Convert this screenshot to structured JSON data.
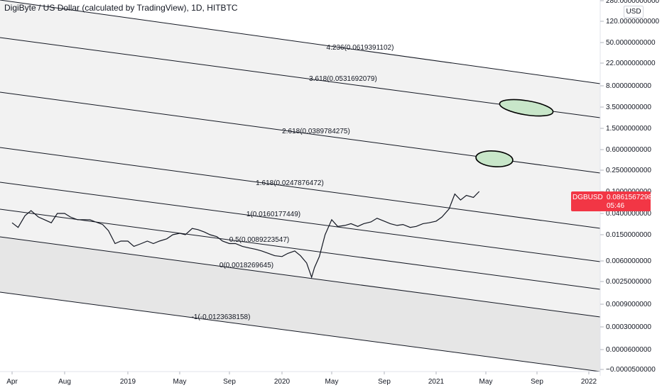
{
  "header": {
    "title": "DigiByte / US Dollar (calculated by TradingView), 1D, HITBTC",
    "currency": "USD"
  },
  "price_tag": {
    "symbol": "DGBUSD",
    "value": "0.0861567298",
    "countdown": "05:46",
    "color": "#f23645"
  },
  "chart_data": {
    "type": "line",
    "title": "DigiByte / US Dollar (calculated by TradingView), 1D, HITBTC",
    "y_scale": "log",
    "y_ticks": [
      "280.0000000000",
      "120.0000000000",
      "50.0000000000",
      "22.0000000000",
      "8.0000000000",
      "3.5000000000",
      "1.5000000000",
      "0.6000000000",
      "0.2500000000",
      "0.1000000000",
      "0.0400000000",
      "0.0150000000",
      "0.0060000000",
      "0.0025000000",
      "0.0009000000",
      "0.0003000000",
      "0.0000600000",
      "−0.0000500000"
    ],
    "x_ticks": [
      "Apr",
      "Aug",
      "2019",
      "May",
      "Sep",
      "2020",
      "May",
      "Sep",
      "2021",
      "May",
      "Sep",
      "2022"
    ],
    "series": [
      {
        "x": [
          "2018-04-01",
          "2018-04-15",
          "2018-05-01",
          "2018-05-15",
          "2018-06-01",
          "2018-06-15",
          "2018-07-01",
          "2018-07-15",
          "2018-08-01",
          "2018-08-15",
          "2018-09-01",
          "2018-09-15",
          "2018-10-01",
          "2018-10-15",
          "2018-11-01",
          "2018-11-15",
          "2018-12-01",
          "2018-12-15",
          "2019-01-01",
          "2019-01-15",
          "2019-02-01",
          "2019-02-15",
          "2019-03-01",
          "2019-03-15",
          "2019-04-01",
          "2019-04-15",
          "2019-05-01",
          "2019-05-15",
          "2019-06-01",
          "2019-06-15",
          "2019-07-01",
          "2019-07-15",
          "2019-08-01",
          "2019-08-15",
          "2019-09-01",
          "2019-09-15",
          "2019-10-01",
          "2019-10-15",
          "2019-11-01",
          "2019-11-15",
          "2019-12-01",
          "2019-12-15",
          "2020-01-01",
          "2020-01-15",
          "2020-02-01",
          "2020-02-15",
          "2020-03-01",
          "2020-03-13",
          "2020-03-20",
          "2020-04-01",
          "2020-04-15",
          "2020-05-01",
          "2020-05-15",
          "2020-06-01",
          "2020-06-15",
          "2020-07-01",
          "2020-07-15",
          "2020-08-01",
          "2020-08-15",
          "2020-09-01",
          "2020-09-15",
          "2020-10-01",
          "2020-10-15",
          "2020-11-01",
          "2020-11-15",
          "2020-12-01",
          "2020-12-15",
          "2021-01-01",
          "2021-01-15",
          "2021-02-01",
          "2021-02-15",
          "2021-03-01",
          "2021-03-15",
          "2021-04-01",
          "2021-04-15"
        ],
        "values": [
          0.026,
          0.021,
          0.036,
          0.045,
          0.034,
          0.03,
          0.026,
          0.04,
          0.04,
          0.034,
          0.03,
          0.03,
          0.03,
          0.027,
          0.024,
          0.018,
          0.011,
          0.012,
          0.012,
          0.01,
          0.011,
          0.012,
          0.011,
          0.012,
          0.013,
          0.015,
          0.016,
          0.015,
          0.02,
          0.019,
          0.017,
          0.015,
          0.014,
          0.012,
          0.011,
          0.011,
          0.01,
          0.0095,
          0.009,
          0.0085,
          0.0078,
          0.0072,
          0.007,
          0.0078,
          0.0085,
          0.0072,
          0.0055,
          0.003,
          0.0045,
          0.007,
          0.015,
          0.03,
          0.022,
          0.023,
          0.025,
          0.022,
          0.025,
          0.027,
          0.032,
          0.028,
          0.025,
          0.023,
          0.024,
          0.021,
          0.022,
          0.025,
          0.026,
          0.028,
          0.034,
          0.048,
          0.09,
          0.07,
          0.085,
          0.078,
          0.1
        ]
      }
    ],
    "fib_levels": [
      {
        "label": "4.236(0.0619391102)"
      },
      {
        "label": "3.618(0.0531692079)"
      },
      {
        "label": "2.618(0.0389784275)"
      },
      {
        "label": "1.618(0.0247876472)"
      },
      {
        "label": "1(0.0160177449)"
      },
      {
        "label": "0.5(0.0089223547)"
      },
      {
        "label": "0(0.0018269645)"
      },
      {
        "label": "-1(-0.0123638158)"
      }
    ]
  }
}
